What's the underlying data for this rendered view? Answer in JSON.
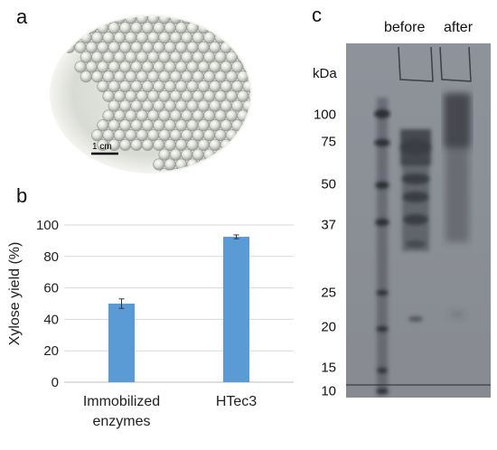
{
  "panels": {
    "a": {
      "letter": "a",
      "scale_bar_label": "1 cm"
    },
    "b": {
      "letter": "b"
    },
    "c": {
      "letter": "c",
      "lane_headers": [
        "before",
        "after"
      ],
      "unit_label": "kDa",
      "markers": [
        "100",
        "75",
        "50",
        "37",
        "25",
        "20",
        "15",
        "10"
      ]
    }
  },
  "chart_data": {
    "type": "bar",
    "categories": [
      [
        "Immobilized",
        "enzymes"
      ],
      [
        "HTec3"
      ]
    ],
    "values": [
      50,
      92.5
    ],
    "errors": [
      3,
      1.2
    ],
    "ylabel": "Xylose yield (%)",
    "xlabel": "",
    "ylim": [
      0,
      100
    ],
    "yticks": [
      0,
      20,
      40,
      60,
      80,
      100
    ],
    "grid": true,
    "bar_color": "#5b9bd5",
    "grid_color": "#d9d9d9"
  }
}
